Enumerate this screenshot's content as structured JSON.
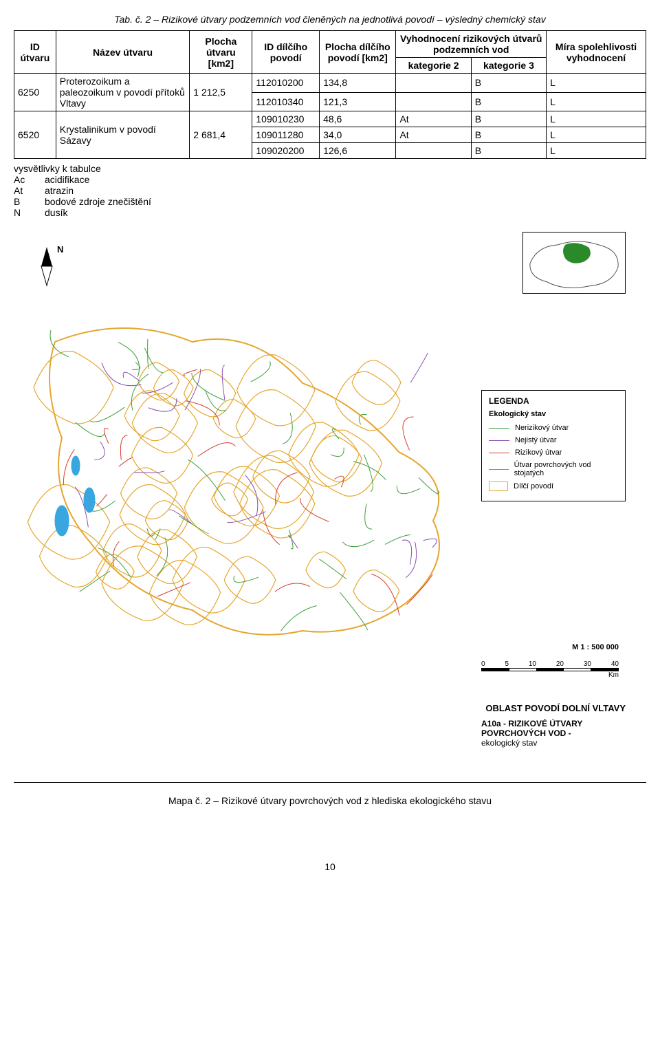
{
  "tab_title": "Tab. č. 2 – Rizikové útvary podzemních vod členěných na jednotlivá povodí – výsledný chemický stav",
  "table": {
    "headers": {
      "id_utvaru": "ID útvaru",
      "nazev_utvaru": "Název útvaru",
      "plocha_utvaru": "Plocha útvaru [km2]",
      "id_dilciho": "ID dílčího povodí",
      "plocha_dilciho": "Plocha dílčího povodí [km2]",
      "vyhodnoceni": "Vyhodnocení rizikových útvarů podzemních vod",
      "kategorie2": "kategorie 2",
      "kategorie3": "kategorie 3",
      "mira": "Míra spolehlivosti vyhodnocení"
    },
    "rows": [
      {
        "id": "6250",
        "nazev": "Proterozoikum a paleozoikum v povodí přítoků Vltavy",
        "plocha": "1 212,5",
        "sub": [
          {
            "idd": "112010200",
            "pl": "134,8",
            "k2": "",
            "k3": "B",
            "m": "L"
          },
          {
            "idd": "112010340",
            "pl": "121,3",
            "k2": "",
            "k3": "B",
            "m": "L"
          }
        ]
      },
      {
        "id": "6520",
        "nazev": "Krystalinikum v povodí Sázavy",
        "plocha": "2 681,4",
        "sub": [
          {
            "idd": "109010230",
            "pl": "48,6",
            "k2": "At",
            "k3": "B",
            "m": "L"
          },
          {
            "idd": "109011280",
            "pl": "34,0",
            "k2": "At",
            "k3": "B",
            "m": "L"
          },
          {
            "idd": "109020200",
            "pl": "126,6",
            "k2": "",
            "k3": "B",
            "m": "L"
          }
        ]
      }
    ]
  },
  "legend_notes": {
    "title": "vysvětlivky k tabulce",
    "items": [
      {
        "k": "Ac",
        "v": "acidifikace"
      },
      {
        "k": "At",
        "v": "atrazin"
      },
      {
        "k": "B",
        "v": "bodové zdroje znečištění"
      },
      {
        "k": "N",
        "v": "dusík"
      }
    ]
  },
  "map": {
    "compass": "N",
    "legend_title": "LEGENDA",
    "legend_subtitle": "Ekologický stav",
    "legend_items": [
      {
        "label": "Nerizikový útvar",
        "type": "line",
        "color": "#3aa03a"
      },
      {
        "label": "Nejistý útvar",
        "type": "line",
        "color": "#8a4fb2"
      },
      {
        "label": "Rizikový útvar",
        "type": "line",
        "color": "#d93a2b"
      },
      {
        "label": "Útvar povrchových vod stojatých",
        "type": "line",
        "color": "#3aa6e0"
      },
      {
        "label": "Dílčí povodí",
        "type": "rect",
        "color": "#e5a62d"
      }
    ],
    "scale_text": "M 1 : 500 000",
    "scale_ticks": [
      "0",
      "5",
      "10",
      "20",
      "30",
      "40"
    ],
    "scale_unit": "Km",
    "region_title": "OBLAST POVODÍ DOLNÍ VLTAVY",
    "sub_code_bold": "A10a - RIZIKOVÉ ÚTVARY POVRCHOVÝCH VOD -",
    "sub_code_rest": "ekologický stav",
    "colors": {
      "river_green": "#3aa03a",
      "river_red": "#d93a2b",
      "river_purple": "#8a4fb2",
      "lake": "#3aa6e0",
      "basin_border": "#e5a62d",
      "inset_fill": "#2a8a2a",
      "inset_outline": "#555"
    }
  },
  "caption": "Mapa č. 2 – Rizikové útvary povrchových vod z hlediska ekologického stavu",
  "page_number": "10"
}
